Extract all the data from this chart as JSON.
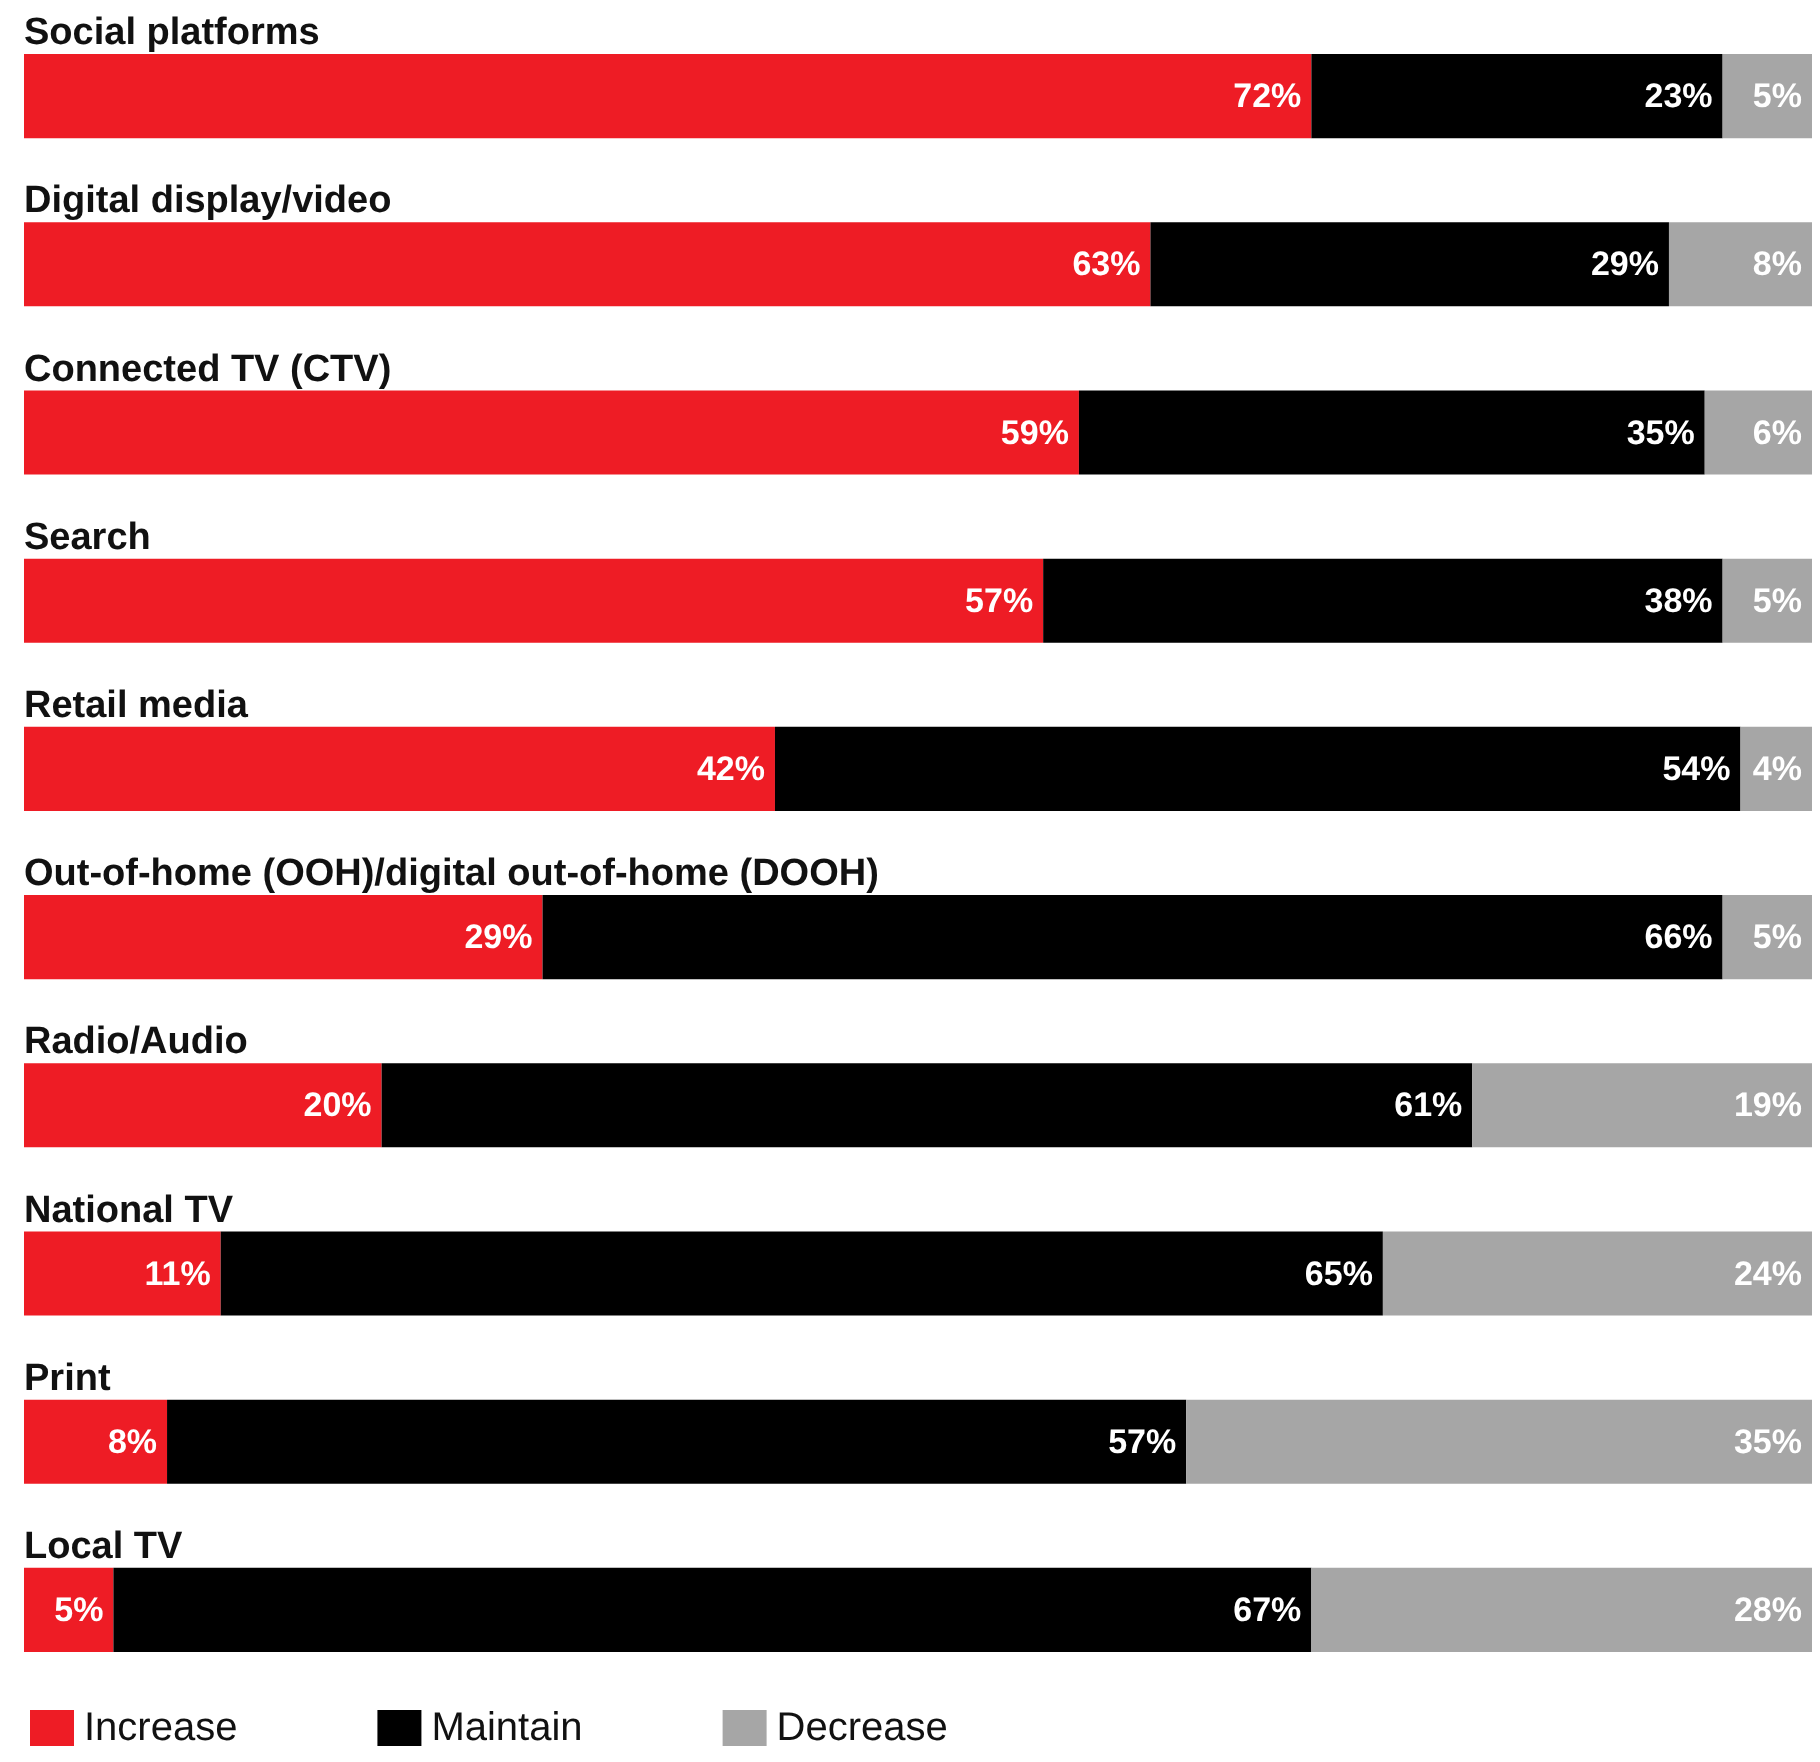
{
  "chart_data": {
    "type": "bar",
    "orientation": "horizontal",
    "stacked": true,
    "legend": "bottom left",
    "tick_labels": false,
    "xlim": [
      0,
      100
    ],
    "categories": [
      "Social platforms",
      "Digital display/video",
      "Connected TV (CTV)",
      "Search",
      "Retail media",
      "Out-of-home (OOH)/digital out-of-home (DOOH)",
      "Radio/Audio",
      "National TV",
      "Print",
      "Local TV"
    ],
    "series": [
      {
        "name": "Increase",
        "color": "#ee1c25",
        "values": [
          72,
          63,
          59,
          57,
          42,
          29,
          20,
          11,
          8,
          5
        ],
        "value_labels": [
          "72%",
          "63%",
          "59%",
          "57%",
          "42%",
          "29%",
          "20%",
          "11%",
          "8%",
          "5%"
        ]
      },
      {
        "name": "Maintain",
        "color": "#000000",
        "values": [
          23,
          29,
          35,
          38,
          54,
          66,
          61,
          65,
          57,
          67
        ],
        "value_labels": [
          "23%",
          "29%",
          "35%",
          "38%",
          "54%",
          "66%",
          "61%",
          "65%",
          "57%",
          "67%"
        ]
      },
      {
        "name": "Decrease",
        "color": "#a6a6a6",
        "values": [
          5,
          8,
          6,
          5,
          4,
          5,
          19,
          24,
          35,
          28
        ],
        "value_labels": [
          "5%",
          "8%",
          "6%",
          "5%",
          "4%",
          "5%",
          "19%",
          "24%",
          "35%",
          "28%"
        ]
      }
    ]
  }
}
